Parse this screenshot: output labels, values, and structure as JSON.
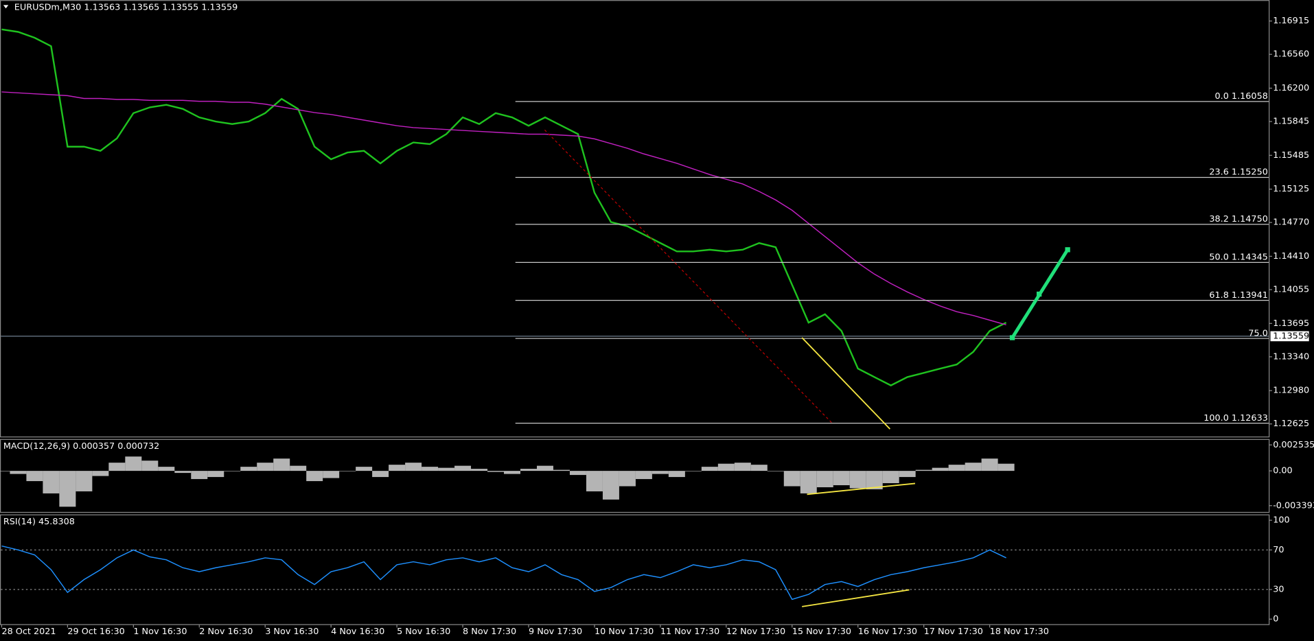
{
  "chart_data": [
    {
      "type": "line",
      "title": "EURUSDm,M30  1.13563 1.13565 1.13555 1.13559",
      "ylim": [
        1.12491,
        1.17138
      ],
      "yticks": [
        1.16915,
        {
          "value": 1.1656,
          "label": "1.16560"
        },
        {
          "value": 1.162,
          "label": "1.16200"
        },
        1.15845,
        1.15485,
        1.15125,
        {
          "value": 1.1477,
          "label": "1.14770"
        },
        {
          "value": 1.1441,
          "label": "1.14410"
        },
        1.14055,
        1.13695,
        {
          "value": 1.1334,
          "label": "1.13340"
        },
        {
          "value": 1.1298,
          "label": "1.12980"
        },
        1.12625
      ],
      "series": [
        {
          "name": "Close",
          "color": "#1fc21f",
          "values": [
            1.16826,
            1.16799,
            1.16737,
            1.16647,
            1.15577,
            1.15577,
            1.15533,
            1.15666,
            1.15934,
            1.15996,
            1.16023,
            1.15979,
            1.15889,
            1.15845,
            1.15818,
            1.15845,
            1.15934,
            1.16086,
            1.15979,
            1.15577,
            1.15443,
            1.15515,
            1.15533,
            1.15399,
            1.15533,
            1.15622,
            1.15604,
            1.15711,
            1.15889,
            1.15818,
            1.15934,
            1.15889,
            1.158,
            1.15889,
            1.158,
            1.15711,
            1.15087,
            1.14774,
            1.1473,
            1.14641,
            1.14551,
            1.14462,
            1.14462,
            1.1448,
            1.14462,
            1.1448,
            1.14551,
            1.14507,
            1.14106,
            1.13704,
            1.13793,
            1.13615,
            1.13214,
            1.13124,
            1.13035,
            1.13124,
            1.13169,
            1.13214,
            1.13258,
            1.13392,
            1.13615,
            1.13704
          ]
        },
        {
          "name": "MA",
          "color": "#c020c0",
          "values": [
            1.1616,
            1.1615,
            1.1614,
            1.1613,
            1.1612,
            1.1609,
            1.1609,
            1.1608,
            1.1608,
            1.1607,
            1.1607,
            1.1607,
            1.1606,
            1.1606,
            1.1605,
            1.1605,
            1.1603,
            1.16,
            1.1597,
            1.1594,
            1.1592,
            1.1589,
            1.1586,
            1.1583,
            1.158,
            1.1578,
            1.1577,
            1.1576,
            1.1575,
            1.1574,
            1.1573,
            1.1572,
            1.1571,
            1.1571,
            1.157,
            1.1569,
            1.1566,
            1.1561,
            1.1556,
            1.155,
            1.1545,
            1.154,
            1.1534,
            1.1528,
            1.1523,
            1.1518,
            1.151,
            1.1501,
            1.149,
            1.1476,
            1.1462,
            1.1448,
            1.1434,
            1.1422,
            1.1412,
            1.1403,
            1.1395,
            1.1388,
            1.1382,
            1.1378,
            1.1373,
            1.1368
          ]
        }
      ],
      "fib_levels": [
        {
          "label": "0.0 1.16058",
          "price": 1.16058
        },
        {
          "label": "23.6 1.15250",
          "price": 1.1525
        },
        {
          "label": "38.2 1.14750",
          "price": 1.1475
        },
        {
          "label": "50.0 1.14345",
          "price": 1.14345
        },
        {
          "label": "61.8 1.13941",
          "price": 1.13941
        },
        {
          "label": "75.0",
          "price": 1.13535
        },
        {
          "label": "100.0 1.12633",
          "price": 1.12633
        }
      ],
      "bid": 1.13559
    },
    {
      "type": "bar",
      "title": "MACD(12,26,9) 0.000357 0.000732",
      "ylim": [
        -0.004007,
        0.003108
      ],
      "yticks": [
        0.002535,
        {
          "value": 0,
          "label": "0.00"
        },
        -0.003393
      ],
      "series": [
        {
          "name": "MACD",
          "color": "#b4b4b4",
          "values": [
            0,
            -0.0003,
            -0.001,
            -0.0022,
            -0.0035,
            -0.002,
            -0.0005,
            0.0008,
            0.0014,
            0.001,
            0.0004,
            -0.0002,
            -0.0008,
            -0.0006,
            0,
            0.0004,
            0.0008,
            0.0012,
            0.0005,
            -0.001,
            -0.0007,
            0,
            0.0004,
            -0.0006,
            0.0006,
            0.0008,
            0.0004,
            0.0003,
            0.0005,
            0.0002,
            -0.0001,
            -0.0003,
            0.0002,
            0.0005,
            0.0001,
            -0.0004,
            -0.002,
            -0.0028,
            -0.0015,
            -0.0008,
            -0.0003,
            -0.0006,
            0,
            0.0004,
            0.0007,
            0.0008,
            0.0006,
            0,
            -0.0015,
            -0.0022,
            -0.0016,
            -0.0014,
            -0.0017,
            -0.0018,
            -0.0012,
            -0.0006,
            0.0001,
            0.0003,
            0.0006,
            0.0008,
            0.0012,
            0.0007
          ]
        }
      ]
    },
    {
      "type": "line",
      "title": "RSI(14) 45.8308",
      "ylim": [
        -5.1,
        105.9
      ],
      "yticks": [
        100,
        70,
        30,
        0
      ],
      "series": [
        {
          "name": "RSI",
          "color": "#1e90ff",
          "values": [
            74,
            70,
            65,
            50,
            27,
            40,
            50,
            62,
            70,
            63,
            60,
            52,
            48,
            52,
            55,
            58,
            62,
            60,
            45,
            35,
            48,
            52,
            58,
            40,
            55,
            58,
            55,
            60,
            62,
            58,
            62,
            52,
            48,
            55,
            45,
            40,
            28,
            32,
            40,
            45,
            42,
            48,
            55,
            52,
            55,
            60,
            58,
            50,
            20,
            25,
            35,
            38,
            33,
            40,
            45,
            48,
            52,
            55,
            58,
            62,
            70,
            62
          ]
        }
      ],
      "time_labels": [
        "28 Oct 2021",
        "29 Oct 16:30",
        "1 Nov 16:30",
        "2 Nov 16:30",
        "3 Nov 16:30",
        "4 Nov 16:30",
        "5 Nov 16:30",
        "8 Nov 17:30",
        "9 Nov 17:30",
        "10 Nov 17:30",
        "11 Nov 17:30",
        "12 Nov 17:30",
        "15 Nov 17:30",
        "16 Nov 17:30",
        "17 Nov 17:30",
        "18 Nov 17:30"
      ]
    }
  ]
}
